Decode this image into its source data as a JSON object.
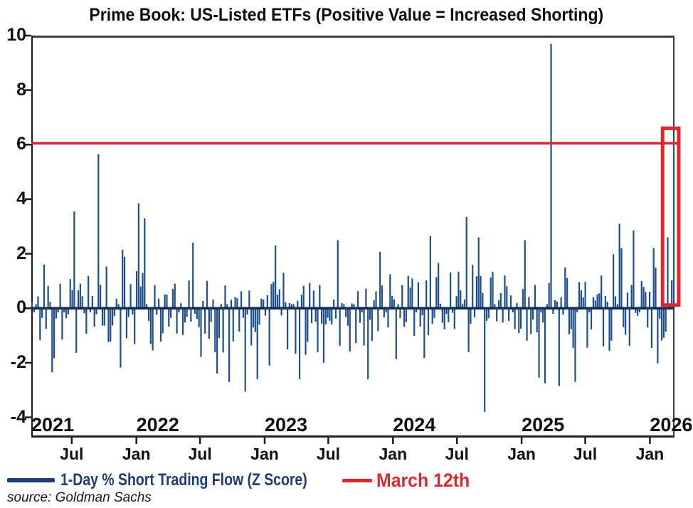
{
  "title": "Prime Book: US-Listed ETFs (Positive Value = Increased Shorting)",
  "source_note": "source: Goldman Sachs",
  "legend": {
    "series": {
      "label": "1-Day % Short Trading Flow (Z Score)",
      "color": "#1c3d78"
    },
    "reference": {
      "label": "March 12th",
      "color": "#e0262b"
    }
  },
  "colors": {
    "bar": "#1d4f8c",
    "zero_line": "#0d2b55",
    "reference": "#e0262b",
    "highlight_box": "#e0262b",
    "axis_frame": "#3c3c3c",
    "tick": "#1a1a1a",
    "text": "#111111"
  },
  "chart_data": {
    "type": "bar",
    "title": "Prime Book: US-Listed ETFs (Positive Value = Increased Shorting)",
    "series_name": "1-Day % Short Trading Flow (Z Score)",
    "x_range": {
      "start": "2021-03-08",
      "end": "2026-03-12"
    },
    "ylim": [
      -4.75,
      10
    ],
    "y_ticks": [
      10,
      8,
      6,
      4,
      2,
      0,
      -2,
      -4
    ],
    "x_ticks": [
      {
        "date": "2021-07-01",
        "label": "Jul"
      },
      {
        "date": "2022-01-01",
        "label": "Jan"
      },
      {
        "date": "2022-07-01",
        "label": "Jul"
      },
      {
        "date": "2023-01-01",
        "label": "Jan"
      },
      {
        "date": "2023-07-01",
        "label": "Jul"
      },
      {
        "date": "2024-01-01",
        "label": "Jan"
      },
      {
        "date": "2024-07-01",
        "label": "Jul"
      },
      {
        "date": "2025-01-01",
        "label": "Jan"
      },
      {
        "date": "2025-07-01",
        "label": "Jul"
      },
      {
        "date": "2026-01-01",
        "label": "Jan"
      }
    ],
    "year_labels": [
      {
        "label": "2021",
        "anchor_date": "2021-01-01"
      },
      {
        "label": "2022",
        "anchor_date": "2022-01-01"
      },
      {
        "label": "2023",
        "anchor_date": "2023-01-01"
      },
      {
        "label": "2024",
        "anchor_date": "2024-01-01"
      },
      {
        "label": "2025",
        "anchor_date": "2025-01-01"
      },
      {
        "label": "2026",
        "anchor_date": "2026-01-01"
      }
    ],
    "grid": false,
    "legend_position": "bottom-left",
    "reference_line": {
      "label": "March 12th",
      "value": 6.05
    },
    "highlight_box": {
      "date_start": "2026-02-06",
      "date_end": "2026-03-24",
      "value_top": 6.6,
      "value_bottom": 0.12
    },
    "notable_points": [
      {
        "date": "2021-04-14",
        "value": 1.6
      },
      {
        "date": "2021-05-09",
        "value": -2.35
      },
      {
        "date": "2021-07-10",
        "value": 3.55
      },
      {
        "date": "2021-09-16",
        "value": 5.65
      },
      {
        "date": "2021-11-20",
        "value": 2.15
      },
      {
        "date": "2022-01-08",
        "value": 3.85
      },
      {
        "date": "2022-01-22",
        "value": 3.3
      },
      {
        "date": "2022-06-12",
        "value": 2.4
      },
      {
        "date": "2022-09-20",
        "value": -2.7
      },
      {
        "date": "2022-11-05",
        "value": -3.05
      },
      {
        "date": "2023-02-02",
        "value": 2.3
      },
      {
        "date": "2023-07-26",
        "value": 2.5
      },
      {
        "date": "2023-10-20",
        "value": -2.6
      },
      {
        "date": "2024-04-15",
        "value": 2.65
      },
      {
        "date": "2024-07-28",
        "value": 3.35
      },
      {
        "date": "2024-09-02",
        "value": 2.6
      },
      {
        "date": "2024-09-18",
        "value": -3.8
      },
      {
        "date": "2025-01-13",
        "value": 2.5
      },
      {
        "date": "2025-03-11",
        "value": -2.75
      },
      {
        "date": "2025-03-27",
        "value": 9.7
      },
      {
        "date": "2025-04-20",
        "value": -2.85
      },
      {
        "date": "2025-05-31",
        "value": -2.7
      },
      {
        "date": "2025-10-04",
        "value": 3.1
      },
      {
        "date": "2025-11-13",
        "value": 2.85
      },
      {
        "date": "2026-01-11",
        "value": 2.2
      },
      {
        "date": "2026-02-18",
        "value": 2.6
      },
      {
        "date": "2026-03-12",
        "value": 6.05
      }
    ],
    "last_point": {
      "date": "2026-03-12",
      "value": 6.05
    },
    "render_hints": {
      "bar_count": 320,
      "noise_seed": 11,
      "noise_sigma": 0.8,
      "typical_band": [
        -2.2,
        2.2
      ]
    }
  }
}
